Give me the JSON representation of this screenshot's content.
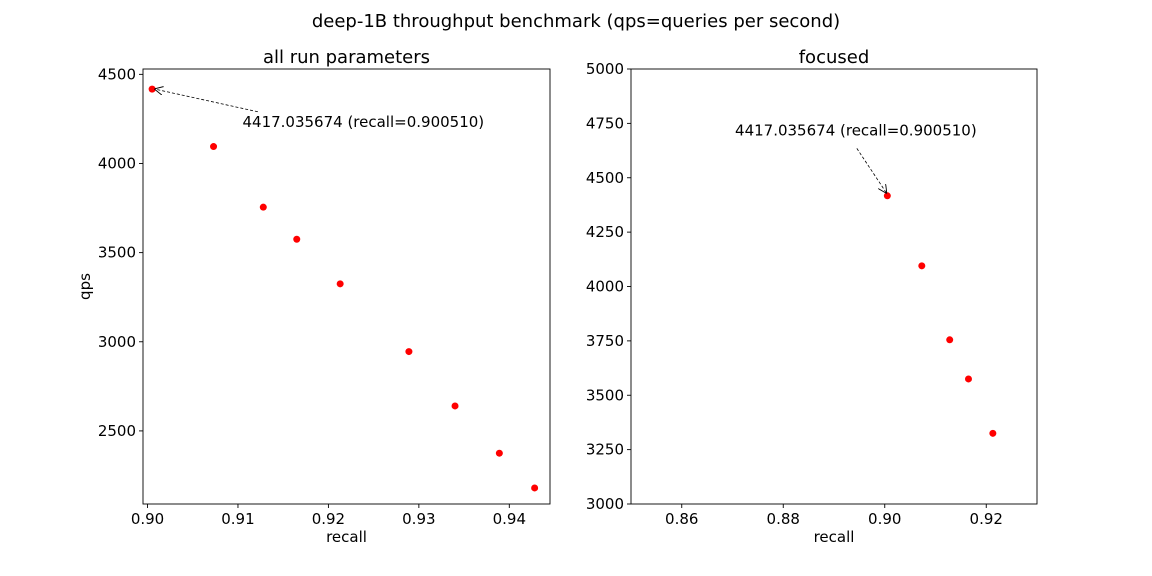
{
  "suptitle": "deep-1B throughput benchmark (qps=queries per second)",
  "colors": {
    "points": "#ff0000",
    "axes": "#000000",
    "annotation": "#000000"
  },
  "chart_data": [
    {
      "type": "scatter",
      "title": "all run parameters",
      "xlabel": "recall",
      "ylabel": "qps",
      "xlim": [
        0.8995,
        0.9445
      ],
      "ylim": [
        2090,
        4530
      ],
      "xticks": [
        0.9,
        0.91,
        0.92,
        0.93,
        0.94
      ],
      "xtick_labels": [
        "0.90",
        "0.91",
        "0.92",
        "0.93",
        "0.94"
      ],
      "yticks": [
        2500,
        3000,
        3500,
        4000,
        4500
      ],
      "ytick_labels": [
        "2500",
        "3000",
        "3500",
        "4000",
        "4500"
      ],
      "x": [
        0.90051,
        0.9073,
        0.9128,
        0.9165,
        0.9213,
        0.9289,
        0.934,
        0.9389,
        0.9428
      ],
      "y": [
        4417.035674,
        4095,
        3755,
        3575,
        3325,
        2945,
        2640,
        2375,
        2180
      ],
      "annotation": {
        "text": "4417.035674 (recall=0.900510)",
        "point": [
          0.90051,
          4417.035674
        ],
        "text_pos": [
          0.9105,
          4205
        ]
      }
    },
    {
      "type": "scatter",
      "title": "focused",
      "xlabel": "recall",
      "ylabel": "",
      "xlim": [
        0.85,
        0.93
      ],
      "ylim": [
        3000,
        5000
      ],
      "xticks": [
        0.86,
        0.88,
        0.9,
        0.92
      ],
      "xtick_labels": [
        "0.86",
        "0.88",
        "0.90",
        "0.92"
      ],
      "yticks": [
        3000,
        3250,
        3500,
        3750,
        4000,
        4250,
        4500,
        4750,
        5000
      ],
      "ytick_labels": [
        "3000",
        "3250",
        "3500",
        "3750",
        "4000",
        "4250",
        "4500",
        "4750",
        "5000"
      ],
      "x": [
        0.90051,
        0.9073,
        0.9128,
        0.9165,
        0.9213
      ],
      "y": [
        4417.035674,
        4095,
        3755,
        3575,
        3325
      ],
      "annotation": {
        "text": "4417.035674 (recall=0.900510)",
        "point": [
          0.90051,
          4417.035674
        ],
        "text_pos": [
          0.8705,
          4695
        ]
      }
    }
  ]
}
